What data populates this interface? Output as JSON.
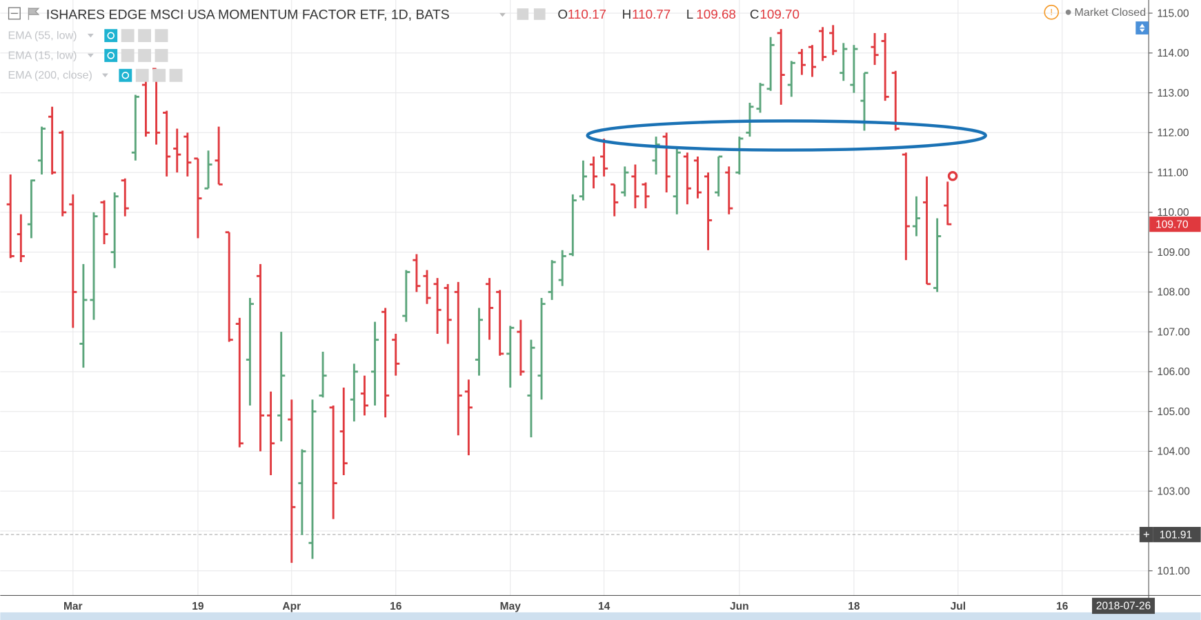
{
  "header": {
    "title": "ISHARES EDGE MSCI USA MOMENTUM FACTOR ETF, 1D, BATS",
    "readout": [
      {
        "key": "O",
        "value": "110.17"
      },
      {
        "key": "H",
        "value": "110.77"
      },
      {
        "key": "L",
        "value": "109.68"
      },
      {
        "key": "C",
        "value": "109.70"
      }
    ],
    "indicators": [
      "EMA (55, low)",
      "EMA (15, low)",
      "EMA (200, close)"
    ],
    "status": "Market Closed"
  },
  "chart_data": {
    "type": "ohlc",
    "categories": [
      null,
      null,
      null,
      null,
      null,
      null,
      "Mar",
      null,
      null,
      null,
      null,
      null,
      null,
      null,
      null,
      null,
      null,
      null,
      "19",
      null,
      null,
      null,
      null,
      null,
      null,
      null,
      null,
      "Apr",
      null,
      null,
      null,
      null,
      null,
      null,
      null,
      null,
      null,
      "16",
      null,
      null,
      null,
      null,
      null,
      null,
      null,
      null,
      null,
      null,
      "May",
      null,
      null,
      null,
      null,
      null,
      null,
      null,
      null,
      "14",
      null,
      null,
      null,
      null,
      null,
      null,
      null,
      null,
      null,
      null,
      null,
      null,
      "Jun",
      null,
      null,
      null,
      null,
      null,
      null,
      null,
      null,
      null,
      null,
      "18",
      null,
      null,
      null,
      null,
      null,
      null,
      null,
      null,
      null,
      "Jul",
      null,
      null,
      null,
      null,
      null,
      null,
      null,
      null,
      null,
      "16",
      null,
      null,
      null,
      null,
      null,
      null,
      null,
      null
    ],
    "open": [
      110.2,
      109.45,
      109.7,
      111.3,
      112.4,
      112.0,
      110.2,
      106.7,
      107.8,
      110.25,
      109.0,
      110.8,
      111.5,
      113.2,
      113.6,
      112.5,
      111.6,
      111.9,
      111.35,
      110.6,
      111.3,
      109.5,
      107.2,
      106.3,
      108.4,
      104.9,
      104.9,
      104.8,
      103.2,
      101.7,
      105.4,
      105.1,
      104.5,
      105.3,
      105.45,
      106.0,
      107.5,
      106.8,
      107.4,
      108.8,
      108.4,
      108.2,
      108.1,
      108.0,
      105.5,
      106.3,
      108.2,
      108.0,
      106.45,
      107.0,
      105.4,
      105.9,
      108.0,
      108.3,
      108.95,
      110.4,
      111.2,
      111.4,
      110.7,
      110.5,
      110.9,
      110.7,
      111.3,
      111.9,
      110.4,
      111.4,
      111.3,
      110.9,
      110.5,
      111.0,
      111.0,
      112.0,
      112.6,
      113.1,
      114.5,
      113.2,
      114.0,
      114.15,
      114.55,
      114.5,
      113.5,
      113.2,
      112.8,
      114.15,
      114.3,
      113.5,
      111.45,
      109.65,
      110.25,
      108.1,
      110.17,
      null,
      null,
      null,
      null,
      null,
      null,
      null,
      null,
      null,
      null,
      null,
      null,
      null,
      null,
      null,
      null,
      null,
      null,
      null
    ],
    "high": [
      110.95,
      109.95,
      110.82,
      112.15,
      112.65,
      112.05,
      110.45,
      108.7,
      110.0,
      110.3,
      110.5,
      110.85,
      112.95,
      113.4,
      113.6,
      112.55,
      112.1,
      112.0,
      111.35,
      111.55,
      112.15,
      109.5,
      107.35,
      107.85,
      108.7,
      105.5,
      107.0,
      105.3,
      104.05,
      105.3,
      106.5,
      105.15,
      105.6,
      106.2,
      105.9,
      107.25,
      107.6,
      106.95,
      108.55,
      108.95,
      108.55,
      108.35,
      108.2,
      108.25,
      105.8,
      107.6,
      108.35,
      108.05,
      107.15,
      107.3,
      106.8,
      107.85,
      108.8,
      109.05,
      110.45,
      111.3,
      111.4,
      111.85,
      110.7,
      111.15,
      111.2,
      110.75,
      111.9,
      112.0,
      111.6,
      111.5,
      111.4,
      111.0,
      111.4,
      111.15,
      111.9,
      112.75,
      113.25,
      114.4,
      114.6,
      113.8,
      114.1,
      114.2,
      114.65,
      114.7,
      114.25,
      114.2,
      113.5,
      114.5,
      114.5,
      113.55,
      111.5,
      110.4,
      110.9,
      109.85,
      110.77,
      null,
      null,
      null,
      null,
      null,
      null,
      null,
      null,
      null,
      null,
      null,
      null,
      null,
      null,
      null,
      null,
      null,
      null,
      null
    ],
    "low": [
      108.85,
      108.75,
      109.35,
      110.95,
      110.95,
      109.9,
      107.1,
      106.1,
      107.3,
      109.2,
      108.6,
      109.9,
      111.3,
      111.9,
      111.7,
      110.9,
      111.0,
      110.9,
      109.35,
      110.6,
      110.7,
      106.75,
      104.1,
      105.15,
      104.0,
      103.4,
      104.25,
      101.2,
      101.9,
      101.3,
      105.35,
      102.3,
      103.4,
      104.75,
      104.9,
      105.15,
      104.85,
      105.9,
      107.25,
      108.0,
      107.7,
      106.95,
      106.7,
      104.4,
      103.9,
      105.9,
      106.8,
      106.4,
      105.6,
      105.9,
      104.35,
      105.3,
      107.8,
      108.15,
      108.9,
      110.3,
      110.6,
      110.9,
      109.9,
      110.4,
      110.1,
      110.1,
      110.95,
      110.5,
      109.95,
      110.2,
      110.35,
      109.05,
      110.4,
      109.95,
      110.95,
      111.9,
      112.5,
      113.05,
      112.7,
      112.9,
      113.45,
      113.4,
      113.8,
      113.95,
      113.3,
      113.0,
      112.05,
      113.7,
      112.8,
      112.05,
      108.8,
      109.4,
      108.2,
      108.0,
      109.68,
      null,
      null,
      null,
      null,
      null,
      null,
      null,
      null,
      null,
      null,
      null,
      null,
      null,
      null,
      null,
      null,
      null,
      null,
      null
    ],
    "close": [
      108.9,
      108.9,
      110.8,
      112.1,
      111.0,
      110.0,
      108.0,
      107.8,
      109.9,
      109.45,
      110.4,
      110.1,
      112.9,
      112.0,
      112.0,
      111.4,
      111.45,
      111.25,
      110.35,
      111.2,
      110.7,
      106.8,
      104.2,
      107.7,
      104.9,
      104.2,
      105.9,
      102.6,
      104.0,
      105.0,
      105.9,
      103.2,
      103.7,
      106.0,
      105.15,
      106.8,
      105.4,
      106.2,
      108.5,
      108.15,
      107.85,
      107.55,
      107.3,
      105.4,
      105.1,
      107.3,
      107.6,
      106.45,
      107.1,
      106.0,
      106.6,
      107.7,
      108.75,
      108.9,
      110.3,
      110.9,
      110.9,
      111.1,
      110.25,
      111.0,
      110.4,
      110.4,
      111.7,
      110.9,
      111.5,
      110.6,
      110.5,
      109.8,
      111.4,
      110.1,
      111.85,
      112.65,
      113.2,
      114.2,
      113.45,
      113.75,
      113.7,
      113.65,
      113.9,
      114.05,
      114.1,
      114.1,
      113.5,
      113.95,
      112.9,
      112.1,
      109.65,
      109.85,
      108.2,
      109.4,
      109.7,
      null,
      null,
      null,
      null,
      null,
      null,
      null,
      null,
      null,
      null,
      null,
      null,
      null,
      null,
      null,
      null,
      null,
      null,
      null
    ],
    "up_color": "#5ba57b",
    "down_color": "#e0393e",
    "ylim": [
      100.38,
      115.33
    ],
    "yticks": [
      {
        "value": 101,
        "label": "101.00"
      },
      {
        "value": 102,
        "label": "102.00"
      },
      {
        "value": 103,
        "label": "103.00"
      },
      {
        "value": 104,
        "label": "104.00"
      },
      {
        "value": 105,
        "label": "105.00"
      },
      {
        "value": 106,
        "label": "106.00"
      },
      {
        "value": 107,
        "label": "107.00"
      },
      {
        "value": 108,
        "label": "108.00"
      },
      {
        "value": 109,
        "label": "109.00"
      },
      {
        "value": 110,
        "label": "110.00"
      },
      {
        "value": 111,
        "label": "111.00"
      },
      {
        "value": 112,
        "label": "112.00"
      },
      {
        "value": 113,
        "label": "113.00"
      },
      {
        "value": 114,
        "label": "114.00"
      },
      {
        "value": 115,
        "label": "115.00"
      }
    ],
    "grid": true,
    "last_price": {
      "value": 109.7,
      "label": "109.70"
    },
    "crosshair": {
      "x": "2018-07-26",
      "y": {
        "value": 101.91,
        "label": "101.91"
      }
    }
  }
}
